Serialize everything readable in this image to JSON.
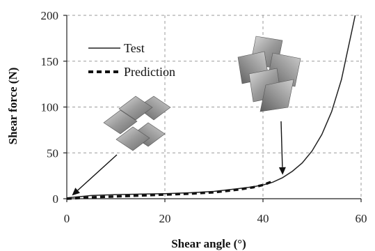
{
  "chart_data": {
    "type": "line",
    "xlabel": "Shear angle (°)",
    "ylabel": "Shear force (N)",
    "xlim": [
      0,
      60
    ],
    "ylim": [
      0,
      200
    ],
    "xticks": [
      "0",
      "20",
      "40",
      "60"
    ],
    "yticks": [
      "0",
      "50",
      "100",
      "150",
      "200"
    ],
    "grid": true,
    "legend_position": "top-left",
    "series": [
      {
        "name": "Test",
        "style": "solid",
        "color": "#222222",
        "x": [
          0,
          5,
          10,
          15,
          20,
          25,
          30,
          35,
          38,
          40,
          42,
          44,
          46,
          48,
          50,
          52,
          54,
          56,
          57,
          58,
          58.8
        ],
        "y": [
          1,
          3.5,
          4.5,
          5,
          5.5,
          6.5,
          8,
          11,
          13,
          15,
          18,
          23,
          30,
          39,
          52,
          70,
          95,
          130,
          155,
          180,
          200
        ]
      },
      {
        "name": "Prediction",
        "style": "dashed",
        "color": "#111111",
        "x": [
          0,
          5,
          10,
          15,
          20,
          25,
          30,
          35,
          38,
          40,
          42
        ],
        "y": [
          0,
          1.5,
          2.5,
          3.5,
          4.5,
          5.5,
          7,
          10,
          12.5,
          15,
          19
        ]
      }
    ],
    "annotations": [
      {
        "label": "unsheared-fabric-illustration",
        "points_to": {
          "x": 0.5,
          "y": 2
        }
      },
      {
        "label": "sheared-fabric-illustration",
        "points_to": {
          "x": 44,
          "y": 26
        }
      }
    ]
  }
}
